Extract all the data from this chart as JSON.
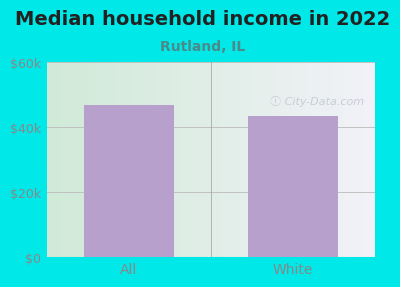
{
  "title": "Median household income in 2022",
  "subtitle": "Rutland, IL",
  "categories": [
    "All",
    "White"
  ],
  "values": [
    47000,
    43500
  ],
  "bar_color": "#b8a0cc",
  "background_color": "#00e8e8",
  "plot_bg_topleft": "#d0ead8",
  "plot_bg_topright": "#f0f0f8",
  "plot_bg_bottomleft": "#c8e8d0",
  "plot_bg_bottomright": "#eeeef5",
  "title_color": "#222222",
  "subtitle_color": "#4a8a8a",
  "tick_color": "#888888",
  "ylim": [
    0,
    60000
  ],
  "yticks": [
    0,
    20000,
    40000,
    60000
  ],
  "ytick_labels": [
    "$0",
    "$20k",
    "$40k",
    "$60k"
  ],
  "watermark_color": "#c0c8d0",
  "title_fontsize": 14,
  "subtitle_fontsize": 10,
  "tick_fontsize": 9,
  "xtick_fontsize": 10
}
